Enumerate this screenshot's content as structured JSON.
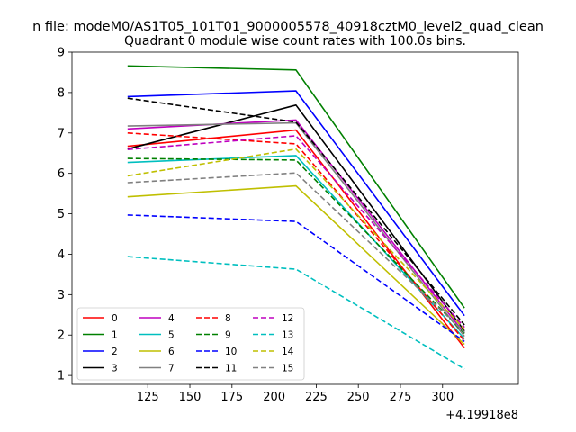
{
  "chart_data": {
    "type": "line",
    "suptitle": "n file: modeM0/AS1T05_101T01_9000005578_40918cztM0_level2_quad_clean",
    "title": "Quadrant 0 module wise count rates with 100.0s bins.",
    "xlabel": "",
    "ylabel": "",
    "x_offset_label": "+4.19918e8",
    "x": [
      113,
      213,
      313
    ],
    "xlim": [
      80,
      345
    ],
    "ylim": [
      0.78,
      9.0
    ],
    "xticks": [
      125,
      150,
      175,
      200,
      225,
      250,
      275,
      300
    ],
    "yticks": [
      1,
      2,
      3,
      4,
      5,
      6,
      7,
      8,
      9
    ],
    "legend_position": "lower-left",
    "legend_columns": 4,
    "series": [
      {
        "name": "0",
        "color": "#ff0000",
        "dash": "solid",
        "values": [
          6.67,
          7.07,
          1.68
        ]
      },
      {
        "name": "1",
        "color": "#008000",
        "dash": "solid",
        "values": [
          8.66,
          8.56,
          2.67
        ]
      },
      {
        "name": "2",
        "color": "#0000ff",
        "dash": "solid",
        "values": [
          7.9,
          8.04,
          2.48
        ]
      },
      {
        "name": "3",
        "color": "#000000",
        "dash": "solid",
        "values": [
          6.6,
          7.69,
          2.1
        ]
      },
      {
        "name": "4",
        "color": "#bf00bf",
        "dash": "solid",
        "values": [
          7.1,
          7.32,
          2.04
        ]
      },
      {
        "name": "5",
        "color": "#00bfbf",
        "dash": "solid",
        "values": [
          6.27,
          6.44,
          1.91
        ]
      },
      {
        "name": "6",
        "color": "#bfbf00",
        "dash": "solid",
        "values": [
          5.42,
          5.69,
          1.77
        ]
      },
      {
        "name": "7",
        "color": "#808080",
        "dash": "solid",
        "values": [
          7.17,
          7.25,
          1.97
        ]
      },
      {
        "name": "8",
        "color": "#ff0000",
        "dash": "dashed",
        "values": [
          7.0,
          6.73,
          1.86
        ]
      },
      {
        "name": "9",
        "color": "#008000",
        "dash": "dashed",
        "values": [
          6.37,
          6.33,
          2.04
        ]
      },
      {
        "name": "10",
        "color": "#0000ff",
        "dash": "dashed",
        "values": [
          4.97,
          4.81,
          1.84
        ]
      },
      {
        "name": "11",
        "color": "#000000",
        "dash": "dashed",
        "values": [
          7.86,
          7.27,
          2.25
        ]
      },
      {
        "name": "12",
        "color": "#bf00bf",
        "dash": "dashed",
        "values": [
          6.59,
          6.93,
          2.19
        ]
      },
      {
        "name": "13",
        "color": "#00bfbf",
        "dash": "dashed",
        "values": [
          3.94,
          3.63,
          1.16
        ]
      },
      {
        "name": "14",
        "color": "#bfbf00",
        "dash": "dashed",
        "values": [
          5.94,
          6.6,
          2.14
        ]
      },
      {
        "name": "15",
        "color": "#808080",
        "dash": "dashed",
        "values": [
          5.77,
          6.01,
          2.07
        ]
      }
    ]
  }
}
